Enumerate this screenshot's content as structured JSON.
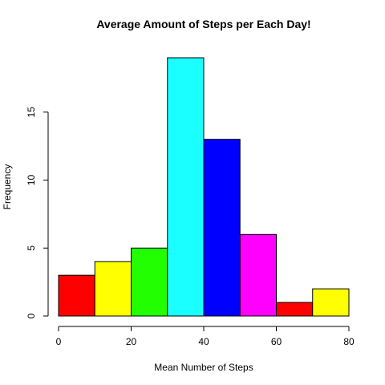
{
  "chart_data": {
    "type": "bar",
    "title": "Average Amount of Steps per Each Day!",
    "xlabel": "Mean Number of Steps",
    "ylabel": "Frequency",
    "bins": [
      {
        "x0": 0,
        "x1": 10,
        "count": 3,
        "color": "#ff0000"
      },
      {
        "x0": 10,
        "x1": 20,
        "count": 4,
        "color": "#ffff00"
      },
      {
        "x0": 20,
        "x1": 30,
        "count": 5,
        "color": "#22ff00"
      },
      {
        "x0": 30,
        "x1": 40,
        "count": 19,
        "color": "#1affff"
      },
      {
        "x0": 40,
        "x1": 50,
        "count": 13,
        "color": "#0000ff"
      },
      {
        "x0": 50,
        "x1": 60,
        "count": 6,
        "color": "#ff00ff"
      },
      {
        "x0": 60,
        "x1": 70,
        "count": 1,
        "color": "#ff0000"
      },
      {
        "x0": 70,
        "x1": 80,
        "count": 2,
        "color": "#ffff00"
      }
    ],
    "xlim": [
      0,
      80
    ],
    "ylim": [
      0,
      19
    ],
    "x_ticks": [
      0,
      20,
      40,
      60,
      80
    ],
    "y_ticks": [
      0,
      5,
      10,
      15
    ],
    "grid": false
  }
}
